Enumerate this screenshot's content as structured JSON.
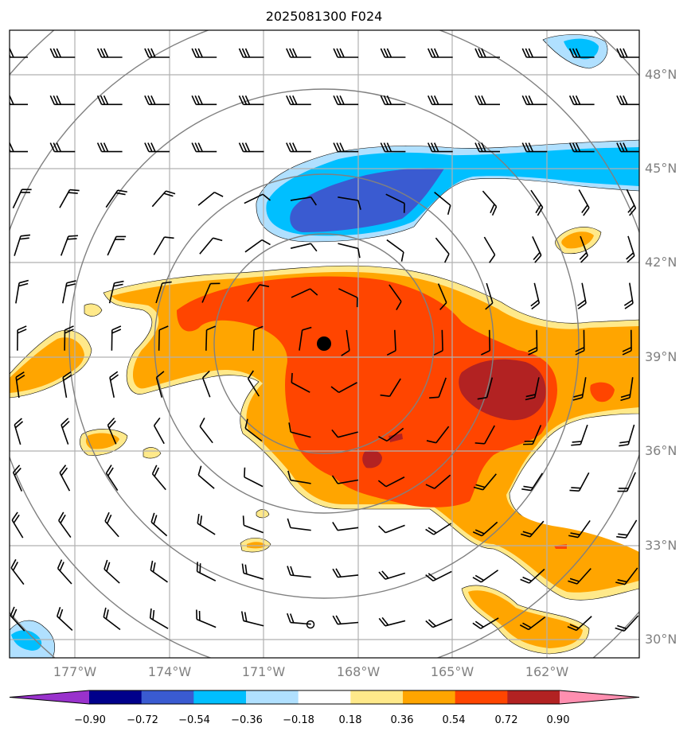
{
  "chart_data": {
    "type": "map-contour",
    "title": "2025081300 F024",
    "lat_ticks": [
      "48°N",
      "45°N",
      "42°N",
      "39°N",
      "36°N",
      "33°N",
      "30°N"
    ],
    "lon_ticks": [
      "177°W",
      "174°W",
      "171°W",
      "168°W",
      "165°W",
      "162°W"
    ],
    "extent": {
      "lon": [
        -179.2,
        -159.2
      ],
      "lat": [
        29.5,
        49.5
      ]
    },
    "center": {
      "lon": -169.0,
      "lat": 39.3
    },
    "colorbar": {
      "labels": [
        "−0.90",
        "−0.72",
        "−0.54",
        "−0.36",
        "−0.18",
        "0.18",
        "0.36",
        "0.54",
        "0.72",
        "0.90"
      ],
      "levels": [
        -0.9,
        -0.72,
        -0.54,
        -0.36,
        -0.18,
        0.18,
        0.36,
        0.54,
        0.72,
        0.9
      ],
      "colors": [
        "#9932cc",
        "#00008b",
        "#3a5bd1",
        "#00bfff",
        "#b0e0ff",
        "#ffffff",
        "#ffe98a",
        "#ffa500",
        "#ff4500",
        "#b22222",
        "#ff8fb0"
      ]
    }
  }
}
